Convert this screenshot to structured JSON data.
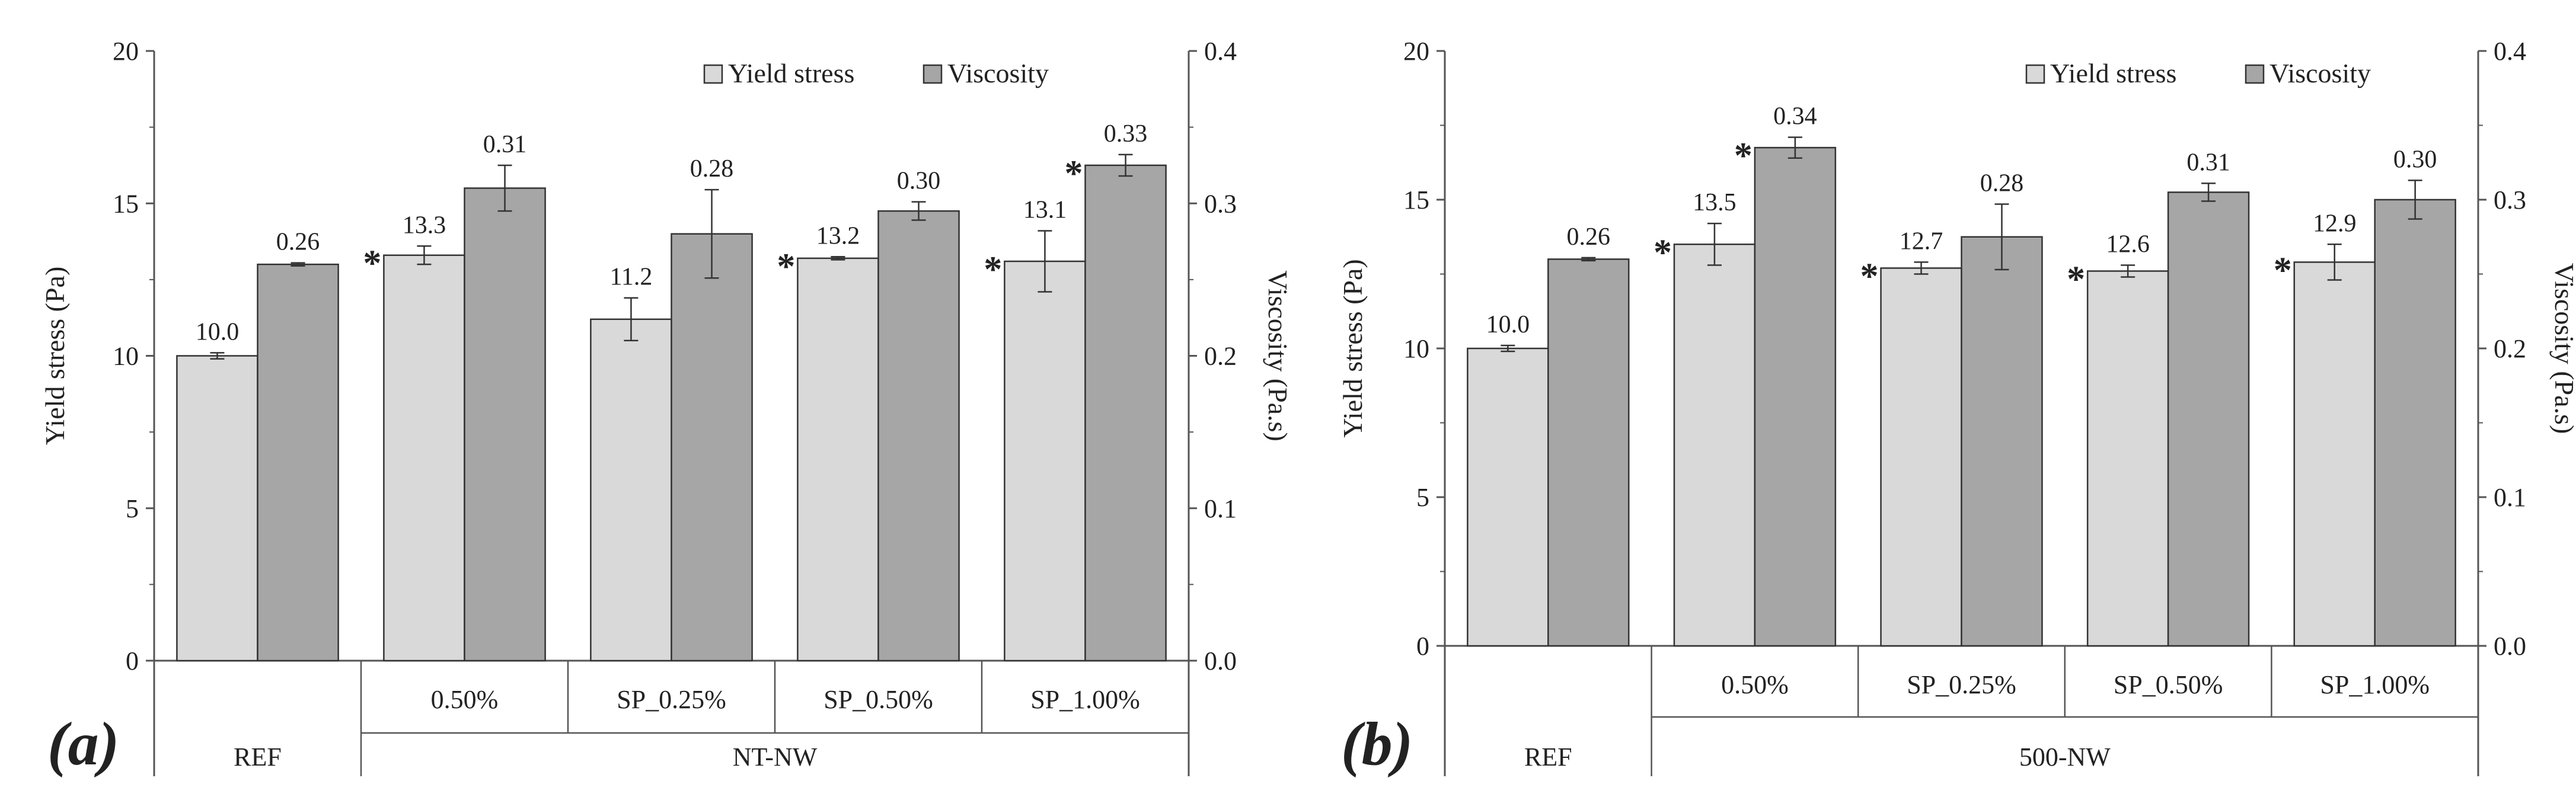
{
  "chart_data": [
    {
      "type": "bar",
      "panel_label": "(a)",
      "ylabel_left": "Yield stress (Pa)",
      "ylabel_right": "Viscosity (Pa.s)",
      "ylim_left": [
        0,
        20
      ],
      "ylim_right": [
        0,
        0.4
      ],
      "yticks_left": [
        "0",
        "5",
        "10",
        "15",
        "20"
      ],
      "yticks_right": [
        "0.0",
        "0.1",
        "0.2",
        "0.3",
        "0.4"
      ],
      "legend": [
        "Yield stress",
        "Viscosity"
      ],
      "legend_position": "top-right",
      "categories": [
        "",
        "0.50%",
        "SP_0.25%",
        "SP_0.50%",
        "SP_1.00%"
      ],
      "groups": [
        {
          "label": "REF",
          "count": 1
        },
        {
          "label": "NT-NW",
          "count": 4
        }
      ],
      "series": [
        {
          "name": "Yield stress",
          "axis": "left",
          "color": "#d9d9d9",
          "values": [
            10.0,
            13.3,
            11.2,
            13.2,
            13.1
          ],
          "errors": [
            0.1,
            0.3,
            0.7,
            0.05,
            1.0
          ],
          "labels": [
            "10.0",
            "13.3",
            "11.2",
            "13.2",
            "13.1"
          ],
          "significant": [
            false,
            true,
            false,
            true,
            true
          ]
        },
        {
          "name": "Viscosity",
          "axis": "right",
          "color": "#a6a6a6",
          "values": [
            0.26,
            0.31,
            0.28,
            0.295,
            0.325
          ],
          "errors": [
            0.001,
            0.015,
            0.029,
            0.006,
            0.007
          ],
          "labels": [
            "0.26",
            "0.31",
            "0.28",
            "0.30",
            "0.33"
          ],
          "significant": [
            false,
            false,
            false,
            false,
            true
          ]
        }
      ]
    },
    {
      "type": "bar",
      "panel_label": "(b)",
      "ylabel_left": "Yield stress (Pa)",
      "ylabel_right": "Viscosity (Pa.s)",
      "ylim_left": [
        0,
        20
      ],
      "ylim_right": [
        0,
        0.4
      ],
      "yticks_left": [
        "0",
        "5",
        "10",
        "15",
        "20"
      ],
      "yticks_right": [
        "0.0",
        "0.1",
        "0.2",
        "0.3",
        "0.4"
      ],
      "legend": [
        "Yield stress",
        "Viscosity"
      ],
      "legend_position": "top-right",
      "categories": [
        "",
        "0.50%",
        "SP_0.25%",
        "SP_0.50%",
        "SP_1.00%"
      ],
      "groups": [
        {
          "label": "REF",
          "count": 1
        },
        {
          "label": "500-NW",
          "count": 4
        }
      ],
      "series": [
        {
          "name": "Yield stress",
          "axis": "left",
          "color": "#d9d9d9",
          "values": [
            10.0,
            13.5,
            12.7,
            12.6,
            12.9
          ],
          "errors": [
            0.1,
            0.7,
            0.2,
            0.2,
            0.6
          ],
          "labels": [
            "10.0",
            "13.5",
            "12.7",
            "12.6",
            "12.9"
          ],
          "significant": [
            false,
            true,
            true,
            true,
            true
          ]
        },
        {
          "name": "Viscosity",
          "axis": "right",
          "color": "#a6a6a6",
          "values": [
            0.26,
            0.335,
            0.275,
            0.305,
            0.3
          ],
          "errors": [
            0.001,
            0.007,
            0.022,
            0.006,
            0.013
          ],
          "labels": [
            "0.26",
            "0.34",
            "0.28",
            "0.31",
            "0.30"
          ],
          "significant": [
            false,
            true,
            false,
            false,
            false
          ]
        }
      ]
    }
  ]
}
